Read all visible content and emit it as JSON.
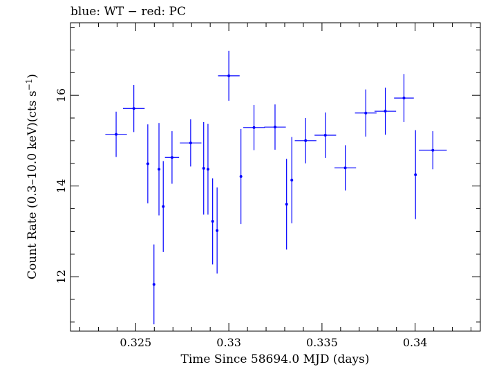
{
  "chart_data": {
    "type": "scatter",
    "title": "blue: WT − red: PC",
    "xlabel": "Time Since 58694.0 MJD (days)",
    "ylabel_main": "Count Rate (0.3–10.0 keV)(cts s",
    "ylabel_sup": "−1",
    "ylabel_close": ")",
    "xlim": [
      0.3215,
      0.3435
    ],
    "ylim": [
      10.8,
      17.6
    ],
    "x_ticks": [
      0.325,
      0.33,
      0.335,
      0.34
    ],
    "x_tick_labels": [
      "0.325",
      "0.33",
      "0.335",
      "0.34"
    ],
    "y_ticks": [
      12,
      14,
      16
    ],
    "y_tick_labels": [
      "12",
      "14",
      "16"
    ],
    "grid": false,
    "series": [
      {
        "color": "#0000ff",
        "points": [
          {
            "x": 0.32395,
            "y": 15.14,
            "xerr": 0.00058,
            "yerr": 0.5
          },
          {
            "x": 0.3249,
            "y": 15.71,
            "xerr": 0.00058,
            "yerr": 0.52
          },
          {
            "x": 0.32565,
            "y": 14.49,
            "xerr": 8e-05,
            "yerr": 0.87
          },
          {
            "x": 0.32598,
            "y": 11.83,
            "xerr": 5e-05,
            "yerr": 0.88
          },
          {
            "x": 0.32625,
            "y": 14.37,
            "xerr": 5e-05,
            "yerr": 1.02
          },
          {
            "x": 0.32648,
            "y": 13.55,
            "xerr": 5e-05,
            "yerr": 1.0
          },
          {
            "x": 0.32695,
            "y": 14.63,
            "xerr": 0.00038,
            "yerr": 0.58
          },
          {
            "x": 0.32795,
            "y": 14.95,
            "xerr": 0.00058,
            "yerr": 0.52
          },
          {
            "x": 0.32865,
            "y": 14.39,
            "xerr": 5e-05,
            "yerr": 1.02
          },
          {
            "x": 0.32888,
            "y": 14.37,
            "xerr": 5e-05,
            "yerr": 1.0
          },
          {
            "x": 0.32913,
            "y": 13.22,
            "xerr": 5e-05,
            "yerr": 0.95
          },
          {
            "x": 0.32937,
            "y": 13.02,
            "xerr": 5e-05,
            "yerr": 0.95
          },
          {
            "x": 0.33,
            "y": 16.43,
            "xerr": 0.00058,
            "yerr": 0.55
          },
          {
            "x": 0.33065,
            "y": 14.21,
            "xerr": 5e-05,
            "yerr": 1.05
          },
          {
            "x": 0.33135,
            "y": 15.29,
            "xerr": 0.00058,
            "yerr": 0.5
          },
          {
            "x": 0.33248,
            "y": 15.3,
            "xerr": 0.00058,
            "yerr": 0.5
          },
          {
            "x": 0.3331,
            "y": 13.6,
            "xerr": 5e-05,
            "yerr": 1.0
          },
          {
            "x": 0.33338,
            "y": 14.13,
            "xerr": 5e-05,
            "yerr": 0.95
          },
          {
            "x": 0.33412,
            "y": 15.0,
            "xerr": 0.00058,
            "yerr": 0.5
          },
          {
            "x": 0.33518,
            "y": 15.12,
            "xerr": 0.00058,
            "yerr": 0.5
          },
          {
            "x": 0.33625,
            "y": 14.4,
            "xerr": 0.00058,
            "yerr": 0.5
          },
          {
            "x": 0.33735,
            "y": 15.61,
            "xerr": 0.00058,
            "yerr": 0.52
          },
          {
            "x": 0.3384,
            "y": 15.65,
            "xerr": 0.00058,
            "yerr": 0.52
          },
          {
            "x": 0.3394,
            "y": 15.94,
            "xerr": 0.00053,
            "yerr": 0.53
          },
          {
            "x": 0.34002,
            "y": 14.25,
            "xerr": 5e-05,
            "yerr": 0.98
          },
          {
            "x": 0.34095,
            "y": 14.79,
            "xerr": 0.00075,
            "yerr": 0.42
          }
        ]
      }
    ]
  }
}
